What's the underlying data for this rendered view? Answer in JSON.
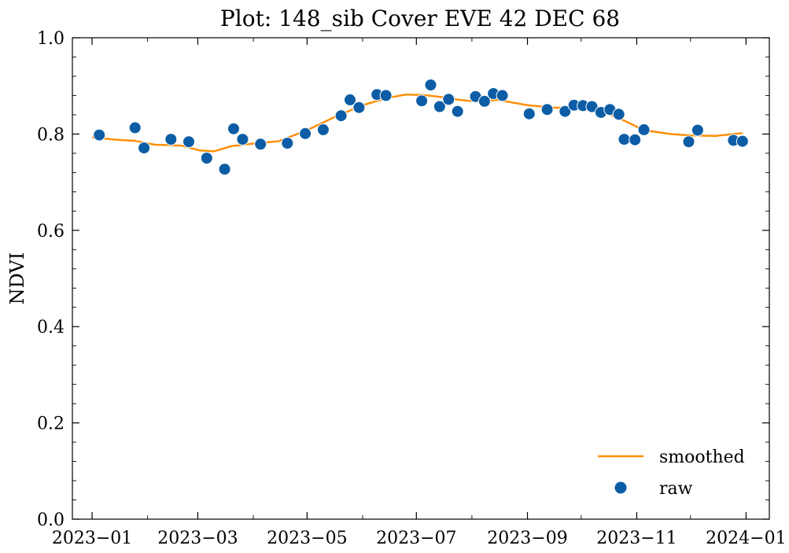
{
  "chart_data": {
    "type": "scatter",
    "title": "Plot: 148_sib Cover EVE 42 DEC 68",
    "xlabel": "",
    "ylabel": "NDVI",
    "xlim": [
      "2022-12-21",
      "2024-01-14"
    ],
    "ylim": [
      0.0,
      1.0
    ],
    "grid": false,
    "legend_position": "lower-right",
    "x_ticks": [
      "2023-01-01",
      "2023-03-01",
      "2023-05-01",
      "2023-07-01",
      "2023-09-01",
      "2023-11-01",
      "2024-01-01"
    ],
    "x_tick_labels": [
      "2023−01",
      "2023−03",
      "2023−05",
      "2023−07",
      "2023−09",
      "2023−11",
      "2024−01"
    ],
    "y_ticks": [
      0.0,
      0.2,
      0.4,
      0.6,
      0.8,
      1.0
    ],
    "y_tick_labels": [
      "0.0",
      "0.2",
      "0.4",
      "0.6",
      "0.8",
      "1.0"
    ],
    "series": [
      {
        "name": "smoothed",
        "type": "line",
        "color": "#ff8c00",
        "x": [
          "2023-01-01",
          "2023-01-15",
          "2023-01-25",
          "2023-02-05",
          "2023-02-20",
          "2023-03-02",
          "2023-03-10",
          "2023-03-20",
          "2023-04-01",
          "2023-04-15",
          "2023-05-01",
          "2023-05-15",
          "2023-06-01",
          "2023-06-15",
          "2023-06-25",
          "2023-07-05",
          "2023-07-15",
          "2023-07-25",
          "2023-08-05",
          "2023-08-15",
          "2023-09-01",
          "2023-09-15",
          "2023-10-01",
          "2023-10-15",
          "2023-10-25",
          "2023-11-05",
          "2023-11-20",
          "2023-12-01",
          "2023-12-15",
          "2023-12-30"
        ],
        "y": [
          0.793,
          0.788,
          0.786,
          0.778,
          0.776,
          0.766,
          0.764,
          0.775,
          0.78,
          0.785,
          0.808,
          0.833,
          0.86,
          0.875,
          0.882,
          0.881,
          0.877,
          0.871,
          0.867,
          0.871,
          0.86,
          0.855,
          0.854,
          0.843,
          0.828,
          0.808,
          0.8,
          0.797,
          0.796,
          0.802
        ]
      },
      {
        "name": "raw",
        "type": "scatter",
        "color": "#0c5da5",
        "x": [
          "2023-01-05",
          "2023-01-25",
          "2023-01-30",
          "2023-02-14",
          "2023-02-24",
          "2023-03-06",
          "2023-03-16",
          "2023-03-21",
          "2023-03-26",
          "2023-04-05",
          "2023-04-20",
          "2023-04-30",
          "2023-05-10",
          "2023-05-20",
          "2023-05-25",
          "2023-05-30",
          "2023-06-09",
          "2023-06-14",
          "2023-07-04",
          "2023-07-09",
          "2023-07-14",
          "2023-07-19",
          "2023-07-24",
          "2023-08-03",
          "2023-08-08",
          "2023-08-13",
          "2023-08-18",
          "2023-09-02",
          "2023-09-12",
          "2023-09-22",
          "2023-09-27",
          "2023-10-02",
          "2023-10-07",
          "2023-10-12",
          "2023-10-17",
          "2023-10-22",
          "2023-10-25",
          "2023-10-31",
          "2023-11-05",
          "2023-11-30",
          "2023-12-05",
          "2023-12-25",
          "2023-12-30"
        ],
        "y": [
          0.798,
          0.813,
          0.771,
          0.789,
          0.784,
          0.75,
          0.727,
          0.811,
          0.789,
          0.779,
          0.781,
          0.801,
          0.809,
          0.838,
          0.871,
          0.855,
          0.882,
          0.88,
          0.869,
          0.902,
          0.857,
          0.872,
          0.847,
          0.878,
          0.868,
          0.884,
          0.88,
          0.842,
          0.851,
          0.847,
          0.86,
          0.859,
          0.857,
          0.845,
          0.851,
          0.841,
          0.789,
          0.788,
          0.809,
          0.784,
          0.808,
          0.787,
          0.785
        ]
      }
    ]
  }
}
